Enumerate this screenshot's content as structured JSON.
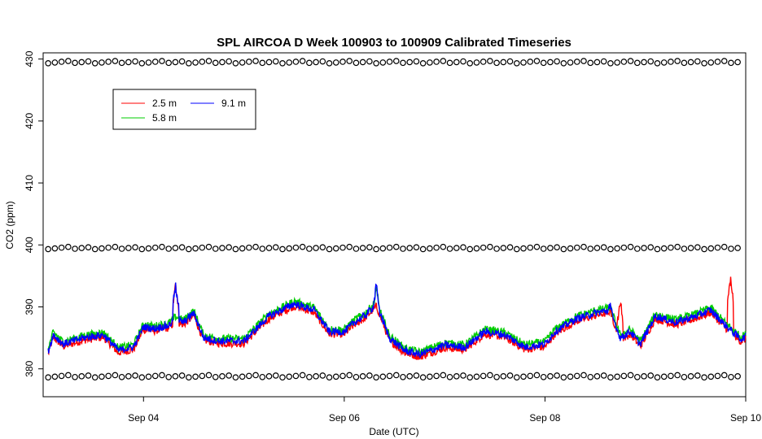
{
  "chart_data": {
    "type": "line",
    "title": "SPL AIRCOA D  Week 100903 to 100909  Calibrated Timeseries",
    "xlabel": "Date (UTC)",
    "ylabel": "CO2 (ppm)",
    "xlim": [
      3.0,
      10.0
    ],
    "ylim": [
      375.5,
      431.0
    ],
    "x_unit": "days since Sep 00 (UTC)",
    "x_ticks": [
      {
        "value": 4,
        "label": "Sep 04"
      },
      {
        "value": 6,
        "label": "Sep 06"
      },
      {
        "value": 8,
        "label": "Sep 08"
      },
      {
        "value": 10,
        "label": "Sep 10"
      }
    ],
    "y_ticks": [
      {
        "value": 380,
        "label": "380"
      },
      {
        "value": 390,
        "label": "390"
      },
      {
        "value": 400,
        "label": "400"
      },
      {
        "value": 410,
        "label": "410"
      },
      {
        "value": 420,
        "label": "420"
      },
      {
        "value": 430,
        "label": "430"
      }
    ],
    "legend": {
      "position": "top-left",
      "entries": [
        {
          "label": "2.5 m",
          "color": "#ff0000"
        },
        {
          "label": "5.8 m",
          "color": "#00cd00"
        },
        {
          "label": "9.1 m",
          "color": "#0000ff"
        }
      ]
    },
    "calibration_levels": [
      {
        "name": "high standard",
        "y": 429.5
      },
      {
        "name": "mid standard",
        "y": 399.5
      },
      {
        "name": "low standard",
        "y": 378.8
      }
    ],
    "calibration_x_start": 3.05,
    "calibration_x_end": 9.97,
    "calibration_x_step": 0.0667,
    "series_base": {
      "x": [
        3.05,
        3.1,
        3.2,
        3.4,
        3.6,
        3.75,
        3.9,
        4.0,
        4.1,
        4.25,
        4.32,
        4.4,
        4.5,
        4.6,
        4.75,
        5.0,
        5.25,
        5.5,
        5.7,
        5.85,
        6.0,
        6.1,
        6.2,
        6.32,
        6.45,
        6.6,
        6.75,
        7.0,
        7.2,
        7.4,
        7.6,
        7.8,
        8.0,
        8.1,
        8.3,
        8.5,
        8.65,
        8.75,
        8.85,
        8.95,
        9.1,
        9.3,
        9.5,
        9.65,
        9.8,
        9.95,
        10.0
      ],
      "y": [
        382.8,
        385.5,
        384.0,
        385.0,
        385.5,
        383.0,
        383.5,
        386.8,
        386.5,
        387.0,
        388.0,
        387.5,
        389.0,
        385.0,
        384.5,
        384.5,
        388.5,
        390.5,
        389.5,
        386.0,
        386.0,
        387.5,
        388.5,
        390.5,
        385.0,
        383.0,
        382.3,
        383.8,
        383.5,
        386.0,
        385.5,
        383.5,
        384.0,
        386.0,
        388.0,
        389.0,
        389.5,
        385.0,
        386.0,
        384.0,
        388.5,
        387.5,
        388.5,
        389.5,
        387.0,
        384.8,
        385.2
      ]
    },
    "series": [
      {
        "name": "2.5 m",
        "color": "#ff0000",
        "offset": -0.4,
        "spikes": [
          [
            4.32,
            393.5
          ],
          [
            8.65,
            390.0
          ],
          [
            8.75,
            391.0
          ],
          [
            9.85,
            394.5
          ]
        ]
      },
      {
        "name": "5.8 m",
        "color": "#00cd00",
        "offset": 0.4,
        "spikes": [
          [
            6.32,
            393.0
          ]
        ]
      },
      {
        "name": "9.1 m",
        "color": "#0000ff",
        "offset": 0.0,
        "spikes": [
          [
            4.32,
            393.5
          ],
          [
            6.32,
            393.5
          ],
          [
            8.65,
            391.0
          ]
        ]
      }
    ]
  }
}
